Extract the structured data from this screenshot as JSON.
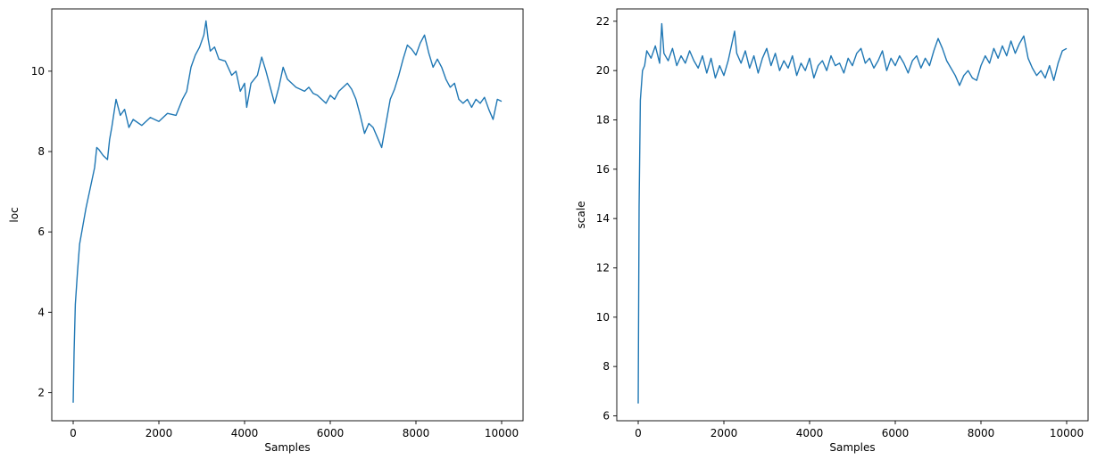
{
  "chart_data": [
    {
      "type": "line",
      "title": "",
      "xlabel": "Samples",
      "ylabel": "loc",
      "xlim": [
        -500,
        10500
      ],
      "ylim": [
        1.3,
        11.55
      ],
      "xticks": [
        0,
        2000,
        4000,
        6000,
        8000,
        10000
      ],
      "yticks": [
        2,
        4,
        6,
        8,
        10
      ],
      "xtick_labels": [
        "0",
        "2000",
        "4000",
        "6000",
        "8000",
        "10000"
      ],
      "ytick_labels": [
        "2",
        "4",
        "6",
        "8",
        "10"
      ],
      "grid": false,
      "color": "#1f77b4",
      "series": [
        {
          "x": [
            0,
            20,
            50,
            100,
            150,
            200,
            250,
            300,
            400,
            500,
            550,
            600,
            700,
            800,
            850,
            900,
            1000,
            1100,
            1200,
            1300,
            1400,
            1600,
            1800,
            2000,
            2200,
            2400,
            2550,
            2650,
            2750,
            2850,
            2950,
            3050,
            3100,
            3150,
            3200,
            3300,
            3400,
            3550,
            3700,
            3800,
            3900,
            4000,
            4050,
            4150,
            4300,
            4400,
            4500,
            4600,
            4700,
            4800,
            4900,
            5000,
            5100,
            5200,
            5300,
            5400,
            5500,
            5600,
            5700,
            5800,
            5900,
            6000,
            6100,
            6200,
            6300,
            6400,
            6500,
            6600,
            6700,
            6800,
            6900,
            7000,
            7100,
            7200,
            7300,
            7400,
            7500,
            7600,
            7700,
            7800,
            7900,
            8000,
            8100,
            8200,
            8300,
            8400,
            8500,
            8600,
            8700,
            8800,
            8900,
            9000,
            9100,
            9200,
            9300,
            9400,
            9500,
            9600,
            9700,
            9800,
            9900,
            10000
          ],
          "y": [
            1.75,
            3.0,
            4.2,
            5.0,
            5.7,
            6.0,
            6.3,
            6.6,
            7.1,
            7.6,
            8.1,
            8.05,
            7.9,
            7.8,
            8.3,
            8.6,
            9.3,
            8.9,
            9.05,
            8.6,
            8.8,
            8.65,
            8.85,
            8.75,
            8.95,
            8.9,
            9.3,
            9.5,
            10.1,
            10.4,
            10.6,
            10.9,
            11.25,
            10.8,
            10.5,
            10.6,
            10.3,
            10.25,
            9.9,
            10.0,
            9.5,
            9.7,
            9.1,
            9.7,
            9.9,
            10.35,
            10.0,
            9.6,
            9.2,
            9.6,
            10.1,
            9.8,
            9.7,
            9.6,
            9.55,
            9.5,
            9.6,
            9.45,
            9.4,
            9.3,
            9.2,
            9.4,
            9.3,
            9.5,
            9.6,
            9.7,
            9.55,
            9.3,
            8.9,
            8.45,
            8.7,
            8.6,
            8.35,
            8.1,
            8.7,
            9.3,
            9.55,
            9.9,
            10.3,
            10.65,
            10.55,
            10.4,
            10.7,
            10.9,
            10.45,
            10.1,
            10.3,
            10.1,
            9.8,
            9.6,
            9.7,
            9.3,
            9.2,
            9.3,
            9.1,
            9.3,
            9.2,
            9.35,
            9.05,
            8.8,
            9.3,
            9.25
          ]
        }
      ]
    },
    {
      "type": "line",
      "title": "",
      "xlabel": "Samples",
      "ylabel": "scale",
      "xlim": [
        -500,
        10500
      ],
      "ylim": [
        5.8,
        22.5
      ],
      "xticks": [
        0,
        2000,
        4000,
        6000,
        8000,
        10000
      ],
      "yticks": [
        6,
        8,
        10,
        12,
        14,
        16,
        18,
        20,
        22
      ],
      "xtick_labels": [
        "0",
        "2000",
        "4000",
        "6000",
        "8000",
        "10000"
      ],
      "ytick_labels": [
        "6",
        "8",
        "10",
        "12",
        "14",
        "16",
        "18",
        "20",
        "22"
      ],
      "grid": false,
      "color": "#1f77b4",
      "series": [
        {
          "x": [
            0,
            20,
            50,
            100,
            150,
            200,
            300,
            400,
            500,
            550,
            600,
            700,
            800,
            900,
            1000,
            1100,
            1200,
            1300,
            1400,
            1500,
            1600,
            1700,
            1800,
            1900,
            2000,
            2100,
            2200,
            2250,
            2300,
            2400,
            2500,
            2600,
            2700,
            2800,
            2900,
            3000,
            3100,
            3200,
            3300,
            3400,
            3500,
            3600,
            3700,
            3800,
            3900,
            4000,
            4100,
            4200,
            4300,
            4400,
            4500,
            4600,
            4700,
            4800,
            4900,
            5000,
            5100,
            5200,
            5300,
            5400,
            5500,
            5600,
            5700,
            5800,
            5900,
            6000,
            6100,
            6200,
            6300,
            6400,
            6500,
            6600,
            6700,
            6800,
            6900,
            7000,
            7100,
            7200,
            7300,
            7400,
            7500,
            7600,
            7700,
            7800,
            7900,
            8000,
            8100,
            8200,
            8300,
            8400,
            8500,
            8600,
            8700,
            8800,
            8900,
            9000,
            9100,
            9200,
            9300,
            9400,
            9500,
            9600,
            9700,
            9800,
            9900,
            10000
          ],
          "y": [
            6.5,
            14.5,
            18.8,
            20.0,
            20.2,
            20.8,
            20.5,
            21.0,
            20.3,
            21.9,
            20.7,
            20.4,
            20.9,
            20.2,
            20.6,
            20.3,
            20.8,
            20.4,
            20.1,
            20.6,
            19.9,
            20.5,
            19.7,
            20.2,
            19.8,
            20.4,
            21.2,
            21.6,
            20.7,
            20.3,
            20.8,
            20.1,
            20.6,
            19.9,
            20.5,
            20.9,
            20.2,
            20.7,
            20.0,
            20.4,
            20.1,
            20.6,
            19.8,
            20.3,
            20.0,
            20.5,
            19.7,
            20.2,
            20.4,
            20.0,
            20.6,
            20.2,
            20.3,
            19.9,
            20.5,
            20.2,
            20.7,
            20.9,
            20.3,
            20.5,
            20.1,
            20.4,
            20.8,
            20.0,
            20.5,
            20.2,
            20.6,
            20.3,
            19.9,
            20.4,
            20.6,
            20.1,
            20.5,
            20.2,
            20.8,
            21.3,
            20.9,
            20.4,
            20.1,
            19.8,
            19.4,
            19.8,
            20.0,
            19.7,
            19.6,
            20.2,
            20.6,
            20.3,
            20.9,
            20.5,
            21.0,
            20.6,
            21.2,
            20.7,
            21.1,
            21.4,
            20.5,
            20.1,
            19.8,
            20.0,
            19.7,
            20.2,
            19.6,
            20.3,
            20.8,
            20.9
          ]
        }
      ]
    }
  ]
}
